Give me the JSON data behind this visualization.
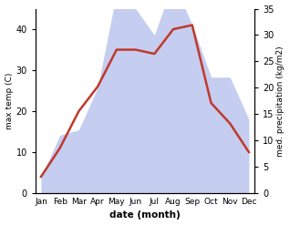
{
  "months": [
    "Jan",
    "Feb",
    "Mar",
    "Apr",
    "May",
    "Jun",
    "Jul",
    "Aug",
    "Sep",
    "Oct",
    "Nov",
    "Dec"
  ],
  "max_temp": [
    4,
    11,
    20,
    26,
    35,
    35,
    34,
    40,
    41,
    22,
    17,
    10
  ],
  "precipitation": [
    3,
    11,
    12,
    20,
    38,
    35,
    30,
    40,
    32,
    22,
    22,
    14
  ],
  "temp_color": "#c0392b",
  "precip_fill_color": "#c5cdf0",
  "temp_ylim": [
    0,
    45
  ],
  "precip_ylim": [
    0,
    35
  ],
  "temp_yticks": [
    0,
    10,
    20,
    30,
    40
  ],
  "precip_yticks": [
    0,
    5,
    10,
    15,
    20,
    25,
    30,
    35
  ],
  "xlabel": "date (month)",
  "ylabel_left": "max temp (C)",
  "ylabel_right": "med. precipitation (kg/m2)",
  "background_color": "#ffffff"
}
